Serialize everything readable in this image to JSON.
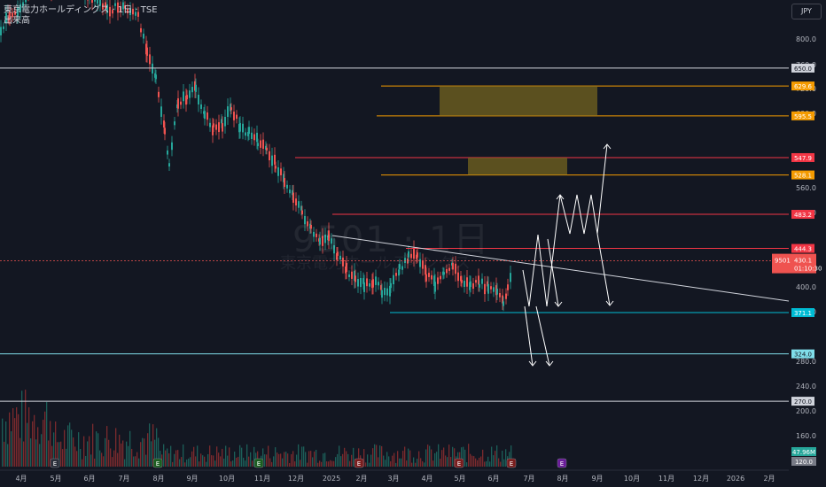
{
  "header": {
    "title": "東京電力ホールディングス · 1日 · TSE",
    "volume_label": "出来高",
    "currency": "JPY"
  },
  "watermark": {
    "symbol": "9501 · 1日",
    "name": "東京電力ホールディングス"
  },
  "colors": {
    "background": "#131722",
    "up": "#26a69a",
    "down": "#ef5350",
    "white_line": "#d1d4dc",
    "orange": "#f59b00",
    "red_line": "#f23645",
    "cyan": "#00bcd4",
    "zone": "#7a6a1e"
  },
  "chart_data": {
    "type": "candlestick",
    "x_tick_labels": [
      "4月",
      "5月",
      "6月",
      "7月",
      "8月",
      "9月",
      "10月",
      "11月",
      "12月",
      "2025",
      "2月",
      "3月",
      "4月",
      "5月",
      "6月",
      "7月",
      "8月",
      "9月",
      "10月",
      "11月",
      "12月",
      "2026",
      "2月"
    ],
    "y_tick_labels": [
      "800.0",
      "760.0",
      "720.0",
      "680.0",
      "560.0",
      "520.0",
      "400.0",
      "360.0",
      "280.0",
      "240.0",
      "200.0",
      "160.0"
    ],
    "ylim": [
      120,
      860
    ],
    "price_levels": [
      {
        "value": 650.0,
        "label": "650.0",
        "color": "#d1d4dc",
        "style": "white"
      },
      {
        "value": 629.6,
        "label": "629.6",
        "color": "#f59b00",
        "style": "orange"
      },
      {
        "value": 595.5,
        "label": "595.5",
        "color": "#f59b00",
        "style": "orange"
      },
      {
        "value": 547.9,
        "label": "547.9",
        "color": "#f23645",
        "style": "red"
      },
      {
        "value": 528.1,
        "label": "528.1",
        "color": "#f59b00",
        "style": "orange"
      },
      {
        "value": 483.2,
        "label": "483.2",
        "color": "#f23645",
        "style": "red"
      },
      {
        "value": 444.3,
        "label": "444.3",
        "color": "#f23645",
        "style": "red"
      },
      {
        "value": 371.1,
        "label": "371.1",
        "color": "#00bcd4",
        "style": "cyan"
      },
      {
        "value": 324.0,
        "label": "324.0",
        "color": "#80deea",
        "style": "cyan-light"
      },
      {
        "value": 270.0,
        "label": "270.0",
        "color": "#d1d4dc",
        "style": "white"
      }
    ],
    "last_price": {
      "symbol": "9501",
      "value": "430.1",
      "countdown": "01:10:30"
    },
    "volume_last": "47.96M",
    "volume_axis_label": "120.0",
    "event_markers": [
      "E",
      "E",
      "E",
      "E",
      "E",
      "E",
      "E"
    ]
  }
}
